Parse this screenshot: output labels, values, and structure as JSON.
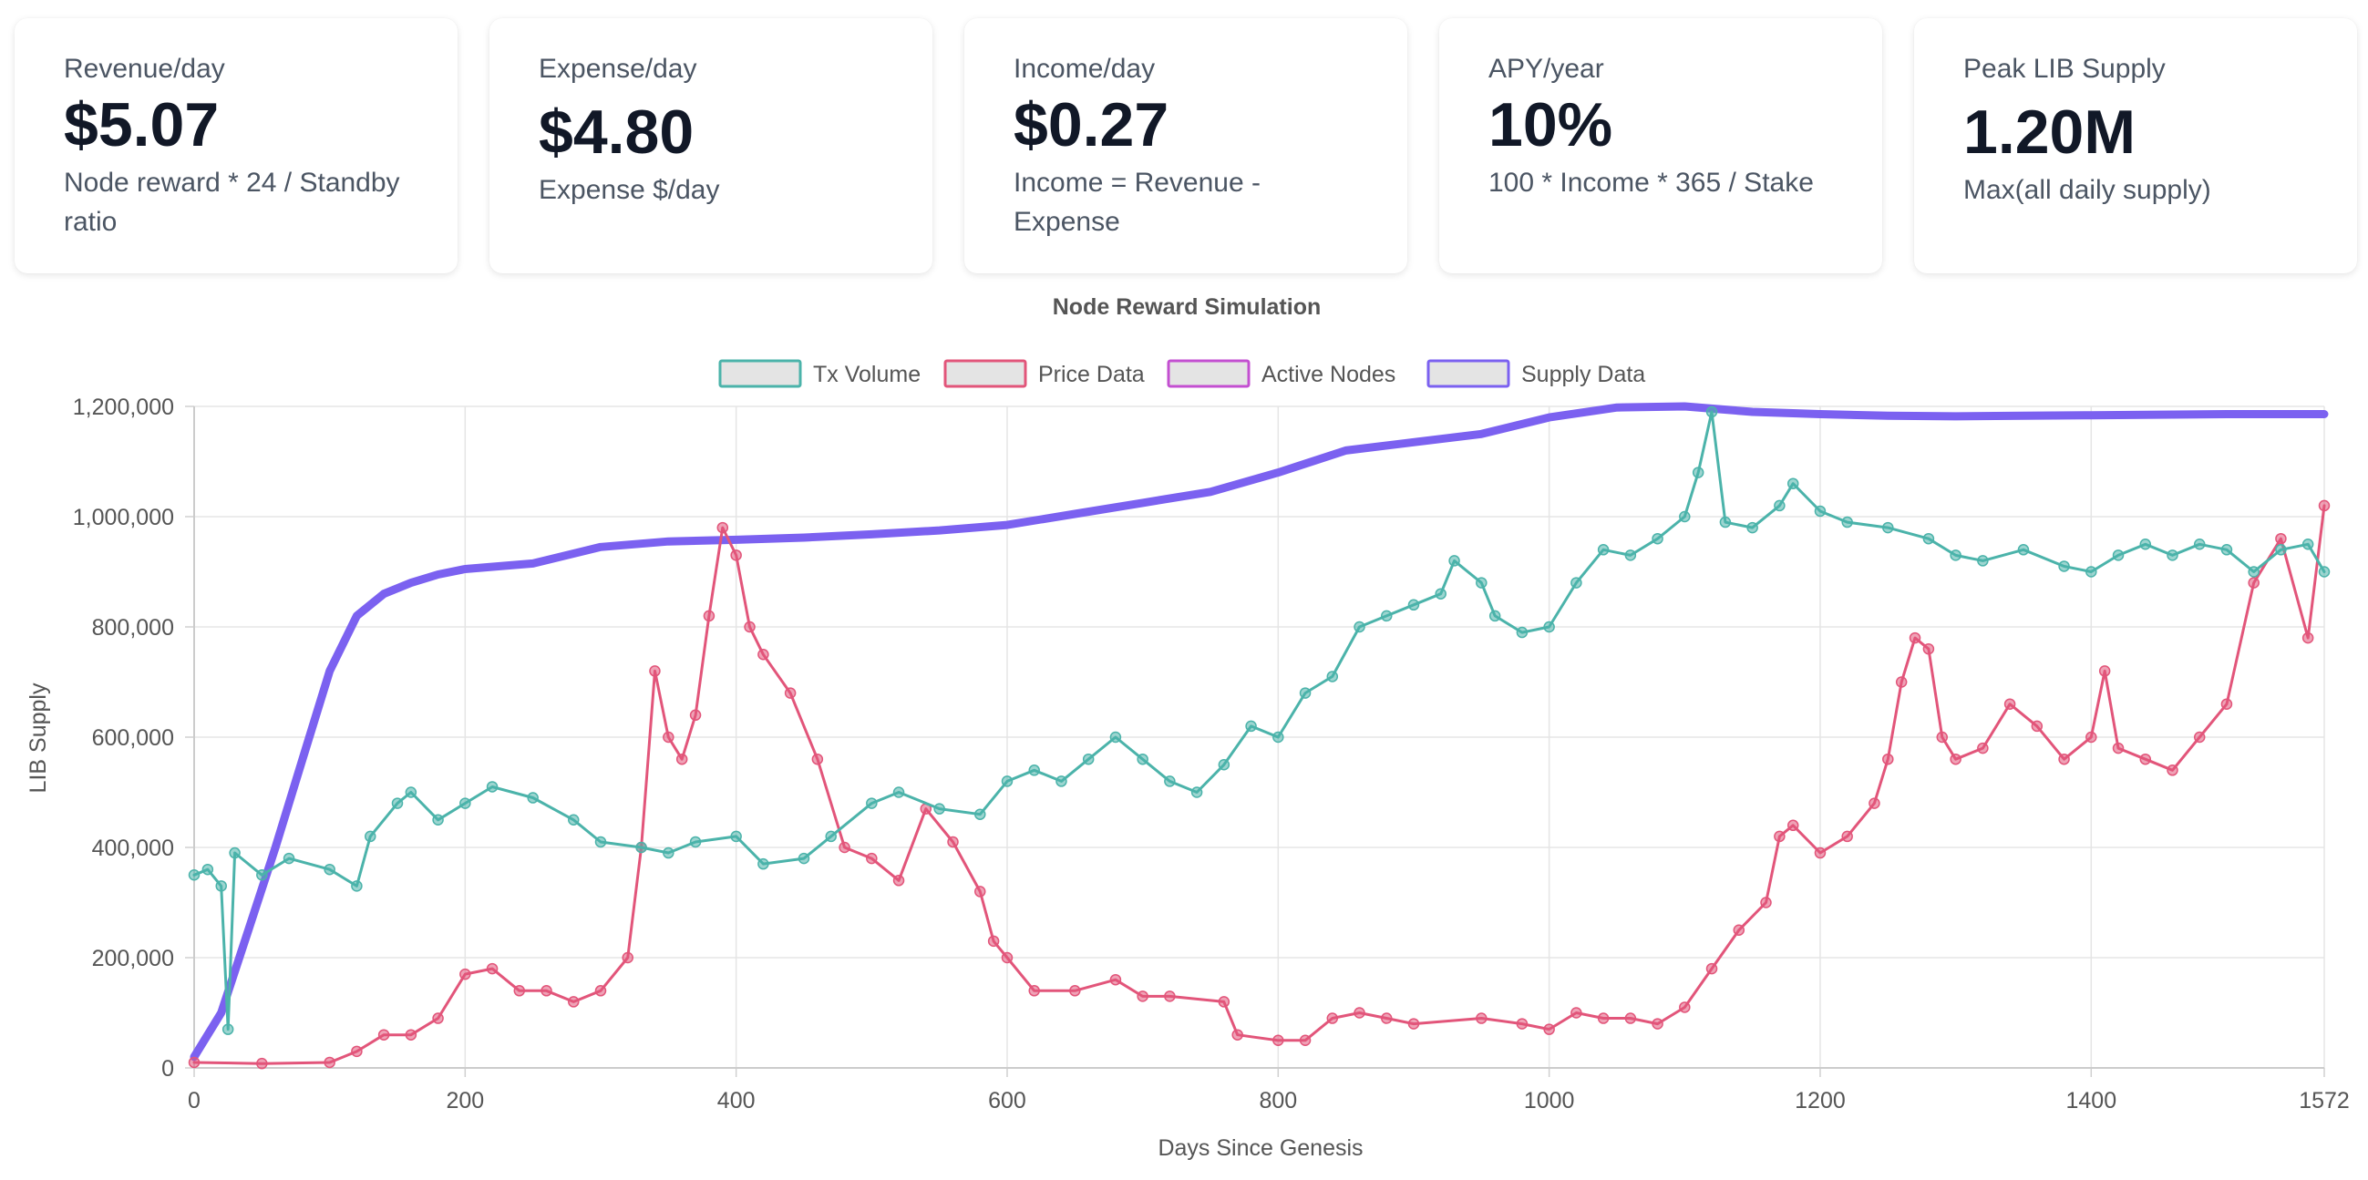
{
  "cards": [
    {
      "label": "Revenue/day",
      "value": "$5.07",
      "desc": "Node reward * 24 / Standby ratio"
    },
    {
      "label": "Expense/day",
      "value": "$4.80",
      "desc": "Expense $/day"
    },
    {
      "label": "Income/day",
      "value": "$0.27",
      "desc": "Income = Revenue - Expense"
    },
    {
      "label": "APY/year",
      "value": "10%",
      "desc": "100 * Income * 365 / Stake"
    },
    {
      "label": "Peak LIB Supply",
      "value": "1.20M",
      "desc": "Max(all daily supply)"
    }
  ],
  "chart_data": {
    "type": "line",
    "title": "Node Reward Simulation",
    "xlabel": "Days Since Genesis",
    "ylabel": "LIB Supply",
    "xlim": [
      0,
      1572
    ],
    "ylim": [
      0,
      1200000
    ],
    "x_ticks": [
      0,
      200,
      400,
      600,
      800,
      1000,
      1200,
      1400,
      1572
    ],
    "y_ticks": [
      0,
      200000,
      400000,
      600000,
      800000,
      1000000,
      1200000
    ],
    "grid": true,
    "legend_position": "top",
    "series": [
      {
        "name": "Tx Volume",
        "color": "#4bb3aa",
        "markers": true,
        "points": [
          [
            0,
            350000
          ],
          [
            10,
            360000
          ],
          [
            20,
            330000
          ],
          [
            25,
            70000
          ],
          [
            30,
            390000
          ],
          [
            50,
            350000
          ],
          [
            70,
            380000
          ],
          [
            100,
            360000
          ],
          [
            120,
            330000
          ],
          [
            130,
            420000
          ],
          [
            150,
            480000
          ],
          [
            160,
            500000
          ],
          [
            180,
            450000
          ],
          [
            200,
            480000
          ],
          [
            220,
            510000
          ],
          [
            250,
            490000
          ],
          [
            280,
            450000
          ],
          [
            300,
            410000
          ],
          [
            330,
            400000
          ],
          [
            350,
            390000
          ],
          [
            370,
            410000
          ],
          [
            400,
            420000
          ],
          [
            420,
            370000
          ],
          [
            450,
            380000
          ],
          [
            470,
            420000
          ],
          [
            500,
            480000
          ],
          [
            520,
            500000
          ],
          [
            550,
            470000
          ],
          [
            580,
            460000
          ],
          [
            600,
            520000
          ],
          [
            620,
            540000
          ],
          [
            640,
            520000
          ],
          [
            660,
            560000
          ],
          [
            680,
            600000
          ],
          [
            700,
            560000
          ],
          [
            720,
            520000
          ],
          [
            740,
            500000
          ],
          [
            760,
            550000
          ],
          [
            780,
            620000
          ],
          [
            800,
            600000
          ],
          [
            820,
            680000
          ],
          [
            840,
            710000
          ],
          [
            860,
            800000
          ],
          [
            880,
            820000
          ],
          [
            900,
            840000
          ],
          [
            920,
            860000
          ],
          [
            930,
            920000
          ],
          [
            950,
            880000
          ],
          [
            960,
            820000
          ],
          [
            980,
            790000
          ],
          [
            1000,
            800000
          ],
          [
            1020,
            880000
          ],
          [
            1040,
            940000
          ],
          [
            1060,
            930000
          ],
          [
            1080,
            960000
          ],
          [
            1100,
            1000000
          ],
          [
            1110,
            1080000
          ],
          [
            1120,
            1190000
          ],
          [
            1130,
            990000
          ],
          [
            1150,
            980000
          ],
          [
            1170,
            1020000
          ],
          [
            1180,
            1060000
          ],
          [
            1200,
            1010000
          ],
          [
            1220,
            990000
          ],
          [
            1250,
            980000
          ],
          [
            1280,
            960000
          ],
          [
            1300,
            930000
          ],
          [
            1320,
            920000
          ],
          [
            1350,
            940000
          ],
          [
            1380,
            910000
          ],
          [
            1400,
            900000
          ],
          [
            1420,
            930000
          ],
          [
            1440,
            950000
          ],
          [
            1460,
            930000
          ],
          [
            1480,
            950000
          ],
          [
            1500,
            940000
          ],
          [
            1520,
            900000
          ],
          [
            1540,
            940000
          ],
          [
            1560,
            950000
          ],
          [
            1572,
            900000
          ]
        ]
      },
      {
        "name": "Price Data",
        "color": "#e2557a",
        "markers": true,
        "points": [
          [
            0,
            10000
          ],
          [
            50,
            8000
          ],
          [
            100,
            10000
          ],
          [
            120,
            30000
          ],
          [
            140,
            60000
          ],
          [
            160,
            60000
          ],
          [
            180,
            90000
          ],
          [
            200,
            170000
          ],
          [
            220,
            180000
          ],
          [
            240,
            140000
          ],
          [
            260,
            140000
          ],
          [
            280,
            120000
          ],
          [
            300,
            140000
          ],
          [
            320,
            200000
          ],
          [
            330,
            400000
          ],
          [
            340,
            720000
          ],
          [
            350,
            600000
          ],
          [
            360,
            560000
          ],
          [
            370,
            640000
          ],
          [
            380,
            820000
          ],
          [
            390,
            980000
          ],
          [
            400,
            930000
          ],
          [
            410,
            800000
          ],
          [
            420,
            750000
          ],
          [
            440,
            680000
          ],
          [
            460,
            560000
          ],
          [
            480,
            400000
          ],
          [
            500,
            380000
          ],
          [
            520,
            340000
          ],
          [
            540,
            470000
          ],
          [
            560,
            410000
          ],
          [
            580,
            320000
          ],
          [
            590,
            230000
          ],
          [
            600,
            200000
          ],
          [
            620,
            140000
          ],
          [
            650,
            140000
          ],
          [
            680,
            160000
          ],
          [
            700,
            130000
          ],
          [
            720,
            130000
          ],
          [
            760,
            120000
          ],
          [
            770,
            60000
          ],
          [
            800,
            50000
          ],
          [
            820,
            50000
          ],
          [
            840,
            90000
          ],
          [
            860,
            100000
          ],
          [
            880,
            90000
          ],
          [
            900,
            80000
          ],
          [
            950,
            90000
          ],
          [
            980,
            80000
          ],
          [
            1000,
            70000
          ],
          [
            1020,
            100000
          ],
          [
            1040,
            90000
          ],
          [
            1060,
            90000
          ],
          [
            1080,
            80000
          ],
          [
            1100,
            110000
          ],
          [
            1120,
            180000
          ],
          [
            1140,
            250000
          ],
          [
            1160,
            300000
          ],
          [
            1170,
            420000
          ],
          [
            1180,
            440000
          ],
          [
            1200,
            390000
          ],
          [
            1220,
            420000
          ],
          [
            1240,
            480000
          ],
          [
            1250,
            560000
          ],
          [
            1260,
            700000
          ],
          [
            1270,
            780000
          ],
          [
            1280,
            760000
          ],
          [
            1290,
            600000
          ],
          [
            1300,
            560000
          ],
          [
            1320,
            580000
          ],
          [
            1340,
            660000
          ],
          [
            1360,
            620000
          ],
          [
            1380,
            560000
          ],
          [
            1400,
            600000
          ],
          [
            1410,
            720000
          ],
          [
            1420,
            580000
          ],
          [
            1440,
            560000
          ],
          [
            1460,
            540000
          ],
          [
            1480,
            600000
          ],
          [
            1500,
            660000
          ],
          [
            1520,
            880000
          ],
          [
            1540,
            960000
          ],
          [
            1560,
            780000
          ],
          [
            1572,
            1020000
          ]
        ]
      },
      {
        "name": "Active Nodes",
        "color": "#c34fd1",
        "markers": false,
        "points": []
      },
      {
        "name": "Supply Data",
        "color": "#7b61f0",
        "markers": false,
        "points": [
          [
            0,
            20000
          ],
          [
            20,
            100000
          ],
          [
            40,
            250000
          ],
          [
            60,
            400000
          ],
          [
            80,
            560000
          ],
          [
            100,
            720000
          ],
          [
            120,
            820000
          ],
          [
            140,
            860000
          ],
          [
            160,
            880000
          ],
          [
            180,
            895000
          ],
          [
            200,
            905000
          ],
          [
            250,
            915000
          ],
          [
            300,
            945000
          ],
          [
            350,
            955000
          ],
          [
            400,
            958000
          ],
          [
            450,
            962000
          ],
          [
            500,
            968000
          ],
          [
            550,
            975000
          ],
          [
            600,
            985000
          ],
          [
            650,
            1005000
          ],
          [
            700,
            1025000
          ],
          [
            750,
            1045000
          ],
          [
            800,
            1080000
          ],
          [
            850,
            1120000
          ],
          [
            900,
            1135000
          ],
          [
            950,
            1150000
          ],
          [
            1000,
            1180000
          ],
          [
            1050,
            1198000
          ],
          [
            1100,
            1200000
          ],
          [
            1150,
            1190000
          ],
          [
            1200,
            1186000
          ],
          [
            1250,
            1183000
          ],
          [
            1300,
            1182000
          ],
          [
            1350,
            1183000
          ],
          [
            1400,
            1184000
          ],
          [
            1450,
            1185000
          ],
          [
            1500,
            1186000
          ],
          [
            1572,
            1186000
          ]
        ]
      }
    ]
  }
}
